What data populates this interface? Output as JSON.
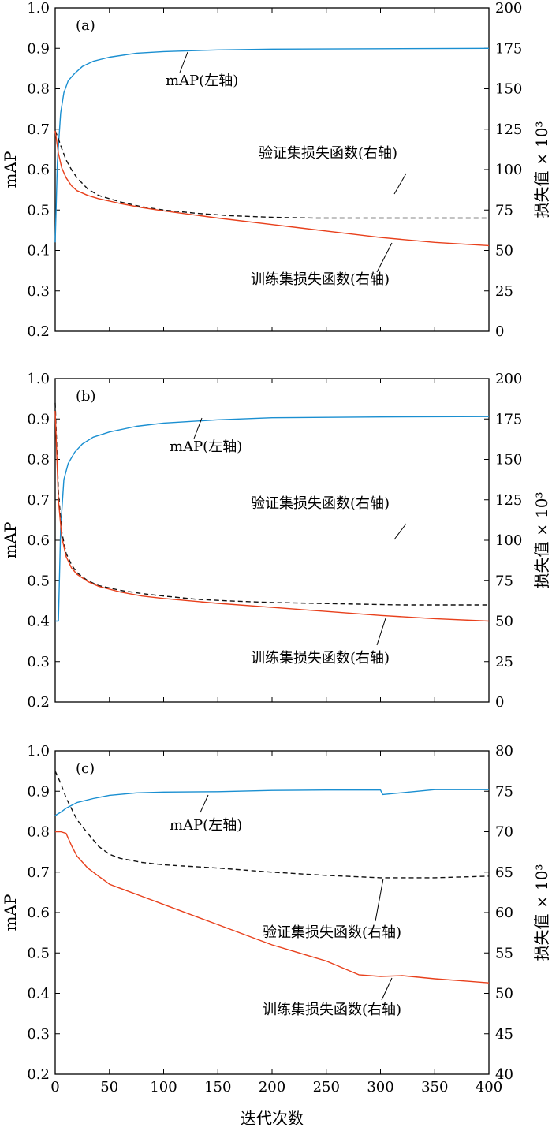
{
  "figure": {
    "xlabel": "迭代次数"
  },
  "chart_data": [
    {
      "type": "line",
      "panel_label": "(a)",
      "xlim": [
        0,
        400
      ],
      "xticks": [
        0,
        50,
        100,
        150,
        200,
        250,
        300,
        350,
        400
      ],
      "ylabel_left": "mAP",
      "ylim_left": [
        0.2,
        1.0
      ],
      "yticks_left": [
        "0.2",
        "0.3",
        "0.4",
        "0.5",
        "0.6",
        "0.7",
        "0.8",
        "0.9",
        "1.0"
      ],
      "ylabel_right": "损失值 × 10³",
      "ylim_right": [
        0,
        200
      ],
      "yticks_right": [
        "0",
        "25",
        "50",
        "75",
        "100",
        "125",
        "150",
        "175",
        "200"
      ],
      "series": [
        {
          "name": "mAP(左轴)",
          "axis": "left",
          "color": "#1a8fd1",
          "dash": "",
          "x": [
            0,
            2,
            5,
            8,
            12,
            18,
            25,
            35,
            50,
            75,
            100,
            150,
            200,
            300,
            400
          ],
          "y": [
            0.42,
            0.62,
            0.74,
            0.79,
            0.82,
            0.838,
            0.855,
            0.868,
            0.878,
            0.888,
            0.892,
            0.896,
            0.898,
            0.899,
            0.9
          ]
        },
        {
          "name": "验证集损失函数(右轴)",
          "axis": "right",
          "color": "#111111",
          "dash": "6,4",
          "x": [
            0,
            3,
            6,
            10,
            15,
            20,
            30,
            40,
            60,
            80,
            100,
            130,
            160,
            200,
            240,
            280,
            320,
            360,
            400
          ],
          "y": [
            124,
            119,
            113,
            106,
            100,
            95,
            88,
            84,
            80,
            77,
            75,
            73,
            71.5,
            70.5,
            70,
            70,
            70,
            70,
            70
          ]
        },
        {
          "name": "训练集损失函数(右轴)",
          "axis": "right",
          "color": "#e8401c",
          "dash": "",
          "x": [
            0,
            3,
            6,
            10,
            15,
            20,
            30,
            40,
            60,
            80,
            100,
            150,
            200,
            250,
            300,
            350,
            400
          ],
          "y": [
            124,
            110,
            101,
            95,
            90,
            87,
            84,
            82,
            79,
            76.5,
            74.5,
            70,
            66,
            62,
            58,
            55,
            53
          ]
        }
      ],
      "annotations": [
        "mAP(左轴)",
        "验证集损失函数(右轴)",
        "训练集损失函数(右轴)"
      ]
    },
    {
      "type": "line",
      "panel_label": "(b)",
      "xlim": [
        0,
        400
      ],
      "xticks": [
        0,
        50,
        100,
        150,
        200,
        250,
        300,
        350,
        400
      ],
      "ylabel_left": "mAP",
      "ylim_left": [
        0.2,
        1.0
      ],
      "yticks_left": [
        "0.2",
        "0.3",
        "0.4",
        "0.5",
        "0.6",
        "0.7",
        "0.8",
        "0.9",
        "1.0"
      ],
      "ylabel_right": "损失值 × 10³",
      "ylim_right": [
        0,
        200
      ],
      "yticks_right": [
        "0",
        "25",
        "50",
        "75",
        "100",
        "125",
        "150",
        "175",
        "200"
      ],
      "series": [
        {
          "name": "mAP(左轴)",
          "axis": "left",
          "color": "#1a8fd1",
          "dash": "",
          "x": [
            0,
            3,
            5,
            8,
            12,
            18,
            25,
            35,
            50,
            75,
            100,
            150,
            200,
            300,
            400
          ],
          "y": [
            0.4,
            0.4,
            0.63,
            0.75,
            0.79,
            0.818,
            0.838,
            0.855,
            0.868,
            0.882,
            0.89,
            0.898,
            0.903,
            0.905,
            0.906
          ]
        },
        {
          "name": "验证集损失函数(右轴)",
          "axis": "right",
          "color": "#111111",
          "dash": "6,4",
          "x": [
            0,
            3,
            6,
            10,
            15,
            20,
            30,
            40,
            60,
            80,
            100,
            130,
            160,
            200,
            240,
            280,
            320,
            360,
            400
          ],
          "y": [
            185,
            130,
            105,
            92,
            85,
            80,
            75,
            72,
            69,
            67,
            65.5,
            63.5,
            62.5,
            61.5,
            61,
            60.5,
            60,
            60,
            60
          ]
        },
        {
          "name": "训练集损失函数(右轴)",
          "axis": "right",
          "color": "#e8401c",
          "dash": "",
          "x": [
            0,
            3,
            6,
            10,
            15,
            20,
            30,
            40,
            60,
            80,
            100,
            150,
            200,
            250,
            300,
            350,
            400
          ],
          "y": [
            180,
            125,
            102,
            90,
            83,
            79,
            74.5,
            71.5,
            68,
            65.5,
            64,
            61,
            58.5,
            56,
            53.5,
            51.5,
            50
          ]
        }
      ],
      "annotations": [
        "mAP(左轴)",
        "验证集损失函数(右轴)",
        "训练集损失函数(右轴)"
      ]
    },
    {
      "type": "line",
      "panel_label": "(c)",
      "xlim": [
        0,
        400
      ],
      "xticks": [
        0,
        50,
        100,
        150,
        200,
        250,
        300,
        350,
        400
      ],
      "ylabel_left": "mAP",
      "ylim_left": [
        0.2,
        1.0
      ],
      "yticks_left": [
        "0.2",
        "0.3",
        "0.4",
        "0.5",
        "0.6",
        "0.7",
        "0.8",
        "0.9",
        "1.0"
      ],
      "ylabel_right": "损失值 × 10³",
      "ylim_right": [
        40,
        80
      ],
      "yticks_right": [
        "40",
        "45",
        "50",
        "55",
        "60",
        "65",
        "70",
        "75",
        "80"
      ],
      "series": [
        {
          "name": "mAP(左轴)",
          "axis": "left",
          "color": "#1a8fd1",
          "dash": "",
          "x": [
            0,
            5,
            10,
            20,
            35,
            50,
            75,
            100,
            150,
            200,
            250,
            300,
            302,
            350,
            400
          ],
          "y": [
            0.84,
            0.848,
            0.858,
            0.872,
            0.882,
            0.89,
            0.896,
            0.898,
            0.899,
            0.902,
            0.903,
            0.903,
            0.892,
            0.904,
            0.904
          ]
        },
        {
          "name": "验证集损失函数(右轴)",
          "axis": "right",
          "color": "#111111",
          "dash": "6,4",
          "x": [
            0,
            5,
            10,
            20,
            30,
            40,
            50,
            60,
            80,
            100,
            150,
            200,
            250,
            300,
            350,
            400
          ],
          "y": [
            77.5,
            76,
            74.2,
            71.5,
            69.8,
            68.2,
            67.2,
            66.7,
            66.2,
            65.9,
            65.5,
            65.0,
            64.6,
            64.3,
            64.3,
            64.5
          ]
        },
        {
          "name": "训练集损失函数(右轴)",
          "axis": "right",
          "color": "#e8401c",
          "dash": "",
          "x": [
            0,
            5,
            10,
            15,
            20,
            30,
            40,
            50,
            60,
            80,
            100,
            150,
            200,
            250,
            280,
            300,
            320,
            350,
            380,
            400
          ],
          "y": [
            70,
            70,
            69.8,
            68.3,
            67,
            65.5,
            64.5,
            63.5,
            63,
            62,
            61,
            58.5,
            56,
            54,
            52.3,
            52.1,
            52.2,
            51.8,
            51.5,
            51.3
          ]
        }
      ],
      "annotations": [
        "mAP(左轴)",
        "验证集损失函数(右轴)",
        "训练集损失函数(右轴)"
      ]
    }
  ]
}
